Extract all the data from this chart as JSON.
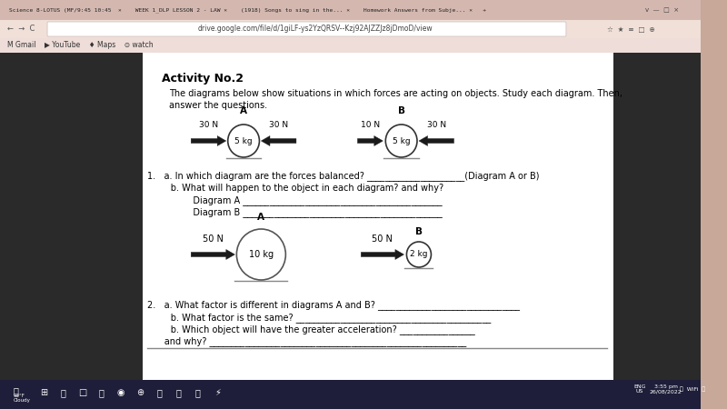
{
  "bg_outer": "#c8a898",
  "bg_browser_top": "#e8d0c8",
  "bg_address_bar": "#f0e0d8",
  "bg_page": "#ffffff",
  "bg_content_area": "#f5f0ee",
  "text_color": "#000000",
  "gray_text": "#555555",
  "arrow_color": "#1a1a1a",
  "circle_edge": "#333333",
  "circle_fill": "#ffffff",
  "ground_color": "#666666",
  "title": "Activity No.2",
  "intro1": "The diagrams below show situations in which forces are acting on objects. Study each diagram. Then,",
  "intro2": "answer the questions.",
  "diag1A_label": "A",
  "diag1B_label": "B",
  "diag1A_left": "30 N",
  "diag1A_mass": "5 kg",
  "diag1A_right": "30 N",
  "diag1B_left": "10 N",
  "diag1B_mass": "5 kg",
  "diag1B_right": "30 N",
  "diag2A_label": "A",
  "diag2B_label": "B",
  "diag2A_force": "50 N",
  "diag2A_mass": "10 kg",
  "diag2B_force": "50 N",
  "diag2B_mass": "2 kg",
  "q1a": "1.   a. In which diagram are the forces balanced? ______________________(Diagram A or B)",
  "q1b": "      b. What will happen to the object in each diagram? and why?",
  "q1_diagA": "           Diagram A _____________________________________________",
  "q1_diagB": "           Diagram B _____________________________________________",
  "q2a": "2.   a. What factor is different in diagrams A and B? ________________________________",
  "q2b": "      b. What factor is the same? ____________________________________________",
  "q2c": "      b. Which object will have the greater acceleration? _________________",
  "q2d": "      and why? __________________________________________________________",
  "tab_bar_color": "#d4b8b0",
  "tab_active_color": "#f0e4e0",
  "taskbar_color": "#1a1a2e"
}
